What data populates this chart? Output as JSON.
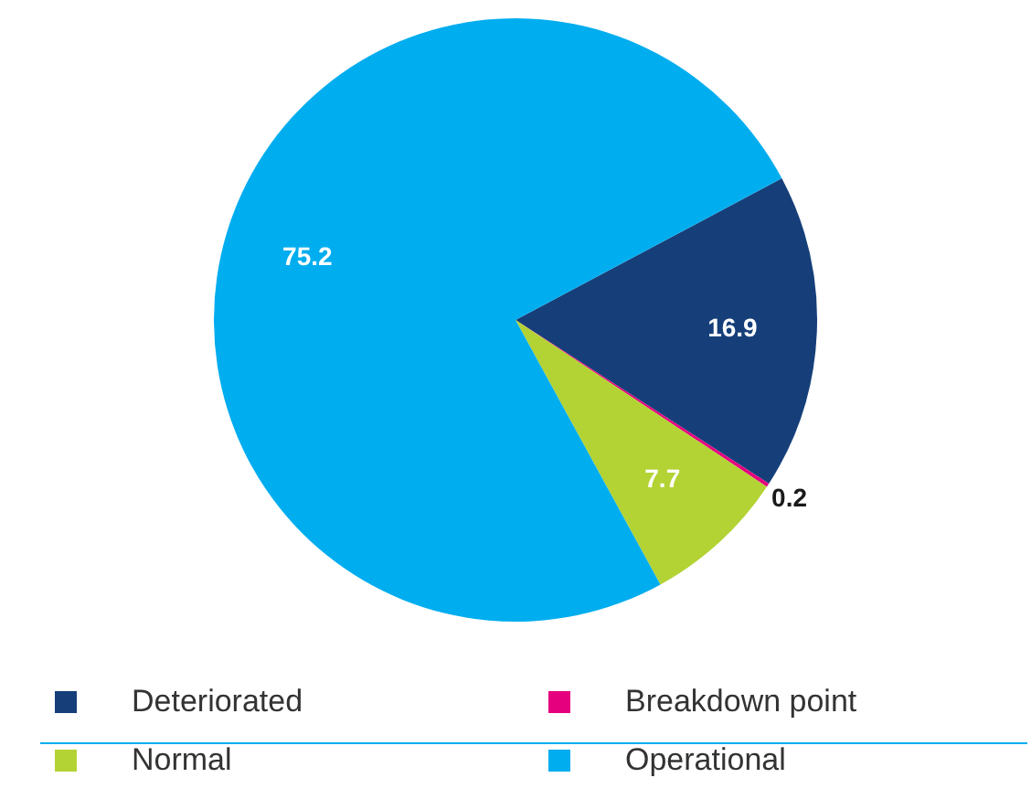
{
  "chart_data": {
    "type": "pie",
    "categories": [
      "Deteriorated",
      "Breakdown point",
      "Normal",
      "Operational"
    ],
    "values": [
      16.9,
      0.2,
      7.7,
      75.2
    ],
    "colors": [
      "#163f7a",
      "#e5007e",
      "#b3d334",
      "#00adef"
    ],
    "data_labels": true,
    "legend": "bottom"
  }
}
